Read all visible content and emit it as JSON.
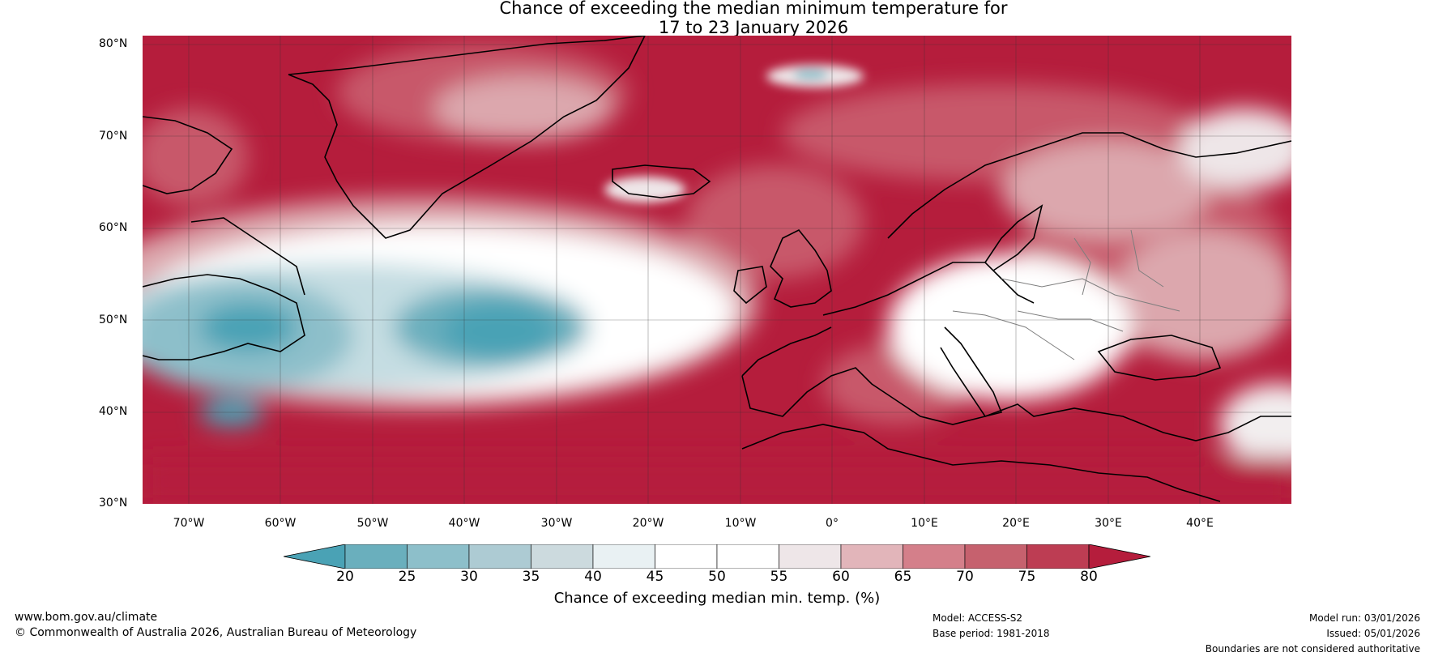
{
  "title": {
    "line1": "Chance of exceeding the median minimum temperature for",
    "line2": "17 to 23 January 2026"
  },
  "map": {
    "lat_labels": [
      "80°N",
      "70°N",
      "60°N",
      "50°N",
      "40°N",
      "30°N"
    ],
    "lon_labels": [
      "70°W",
      "60°W",
      "50°W",
      "40°W",
      "30°W",
      "20°W",
      "10°W",
      "0°",
      "10°E",
      "20°E",
      "30°E",
      "40°E"
    ],
    "lat_range": [
      30,
      81
    ],
    "lon_range": [
      -75,
      50
    ],
    "colors": {
      "warm_high": "#b51d3c",
      "warm_mid": "#c8596a",
      "warm_low": "#dca7ad",
      "neutral": "#ffffff",
      "cool_low": "#c5dde2",
      "cool_high": "#4aa2b5",
      "coast": "#000000",
      "border": "#888888"
    }
  },
  "colorbar": {
    "ticks": [
      "20",
      "25",
      "30",
      "35",
      "40",
      "45",
      "50",
      "55",
      "60",
      "65",
      "70",
      "75",
      "80"
    ],
    "segment_colors": [
      "#6aafbd",
      "#8dbfca",
      "#adcbd3",
      "#ccdade",
      "#e9f1f3",
      "#ffffff",
      "#ffffff",
      "#eee6e8",
      "#e2b5ba",
      "#d47f8a",
      "#c6616e",
      "#bd3d53"
    ],
    "low_extend_color": "#4aa2b5",
    "high_extend_color": "#b51d3c",
    "label": "Chance of exceeding median min. temp. (%)"
  },
  "footer": {
    "website": "www.bom.gov.au/climate",
    "copyright": "© Commonwealth of Australia 2026, Australian Bureau of Meteorology",
    "model": "Model: ACCESS-S2",
    "base_period": "Base period: 1981-2018",
    "model_run": "Model run: 03/01/2026",
    "issued": "Issued: 05/01/2026",
    "disclaimer": "Boundaries are not considered authoritative"
  }
}
